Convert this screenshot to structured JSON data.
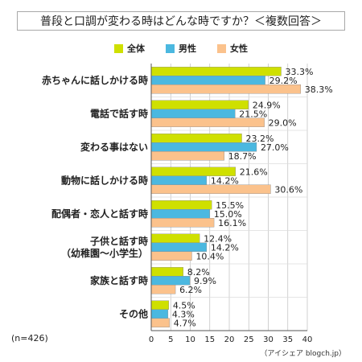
{
  "chart_data": {
    "type": "bar",
    "orientation": "horizontal",
    "title": "普段と口調が変わる時はどんな時ですか？＜複数回答＞",
    "categories": [
      [
        "赤ちゃんに話しかける時"
      ],
      [
        "電話で話す時"
      ],
      [
        "変わる事はない"
      ],
      [
        "動物に話しかける時"
      ],
      [
        "配偶者・恋人と話す時"
      ],
      [
        "子供と話す時",
        "（幼稚園〜小学生）"
      ],
      [
        "家族と話す時"
      ],
      [
        "その他"
      ]
    ],
    "series": [
      {
        "name": "全体",
        "color": "#cfe000",
        "values": [
          33.3,
          24.9,
          23.2,
          21.6,
          15.5,
          12.4,
          8.2,
          4.5
        ]
      },
      {
        "name": "男性",
        "color": "#4bb8e0",
        "values": [
          29.2,
          21.5,
          27.0,
          14.2,
          15.0,
          14.2,
          9.9,
          4.3
        ]
      },
      {
        "name": "女性",
        "color": "#fbc28c",
        "values": [
          38.3,
          29.0,
          18.7,
          30.6,
          16.1,
          10.4,
          6.2,
          4.7
        ]
      }
    ],
    "unit": "%",
    "xlim": [
      0,
      40
    ],
    "xticks": [
      0,
      5,
      10,
      15,
      20,
      25,
      30,
      35,
      40
    ],
    "grid": true,
    "legend": "top-center",
    "sample_note": "(n=426)",
    "source_note": "（アイシェア blogch.jp）"
  }
}
